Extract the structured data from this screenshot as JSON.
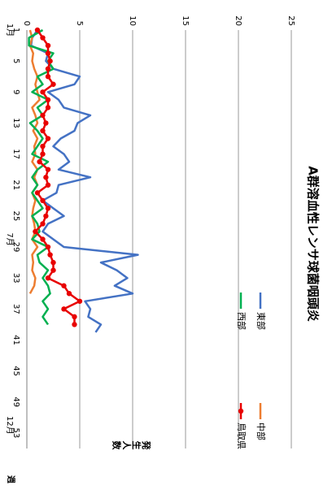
{
  "chart_data": {
    "type": "line",
    "title": "A群溶血性レンサ球菌咽頭炎",
    "ylabel": "発生人数",
    "xlabel": "週",
    "ylim": [
      0,
      25
    ],
    "y_ticks": [
      0,
      5,
      10,
      15,
      20,
      25
    ],
    "x_ticks": [
      1,
      5,
      9,
      13,
      17,
      21,
      25,
      29,
      33,
      37,
      41,
      45,
      49,
      53
    ],
    "month_labels": [
      {
        "week": 1,
        "label": "1月"
      },
      {
        "week": 28,
        "label": "7月"
      },
      {
        "week": 52,
        "label": "12月"
      }
    ],
    "grid": true,
    "legend_position": "top-right",
    "series": [
      {
        "name": "東部",
        "color": "#4472C4",
        "marker": false,
        "values": [
          1.0,
          0.5,
          0.4,
          2.0,
          1.8,
          2.5,
          5.0,
          4.5,
          2.0,
          3.0,
          3.5,
          6.0,
          4.8,
          4.5,
          3.2,
          2.5,
          3.5,
          4.0,
          3.0,
          6.0,
          3.0,
          2.8,
          1.5,
          2.5,
          3.5,
          2.0,
          1.5,
          2.5,
          3.5,
          10.5,
          7.0,
          8.5,
          9.5,
          8.3,
          10.0,
          5.5,
          6.0,
          5.8,
          7.0,
          6.5
        ]
      },
      {
        "name": "中部",
        "color": "#ED7D31",
        "marker": false,
        "values": [
          0.3,
          0.5,
          0.3,
          0.6,
          0.5,
          0.7,
          1.0,
          0.8,
          1.0,
          1.2,
          0.5,
          0.8,
          1.0,
          0.6,
          1.0,
          0.7,
          0.8,
          0.5,
          1.0,
          0.7,
          1.0,
          0.5,
          0.8,
          0.6,
          0.5,
          0.7,
          0.8,
          0.5,
          1.0,
          0.5,
          0.6,
          0.5,
          0.8,
          0.7,
          0.3
        ]
      },
      {
        "name": "西部",
        "color": "#00B050",
        "marker": false,
        "values": [
          1.5,
          0.2,
          0.2,
          2.5,
          2.0,
          2.5,
          1.0,
          1.5,
          0.5,
          2.0,
          1.0,
          1.5,
          0.3,
          1.0,
          1.5,
          1.0,
          0.5,
          2.0,
          1.0,
          0.5,
          1.0,
          0.5,
          1.0,
          1.5,
          0.5,
          1.0,
          1.2,
          0.5,
          2.0,
          1.0,
          1.2,
          2.0,
          1.5,
          2.0,
          2.2,
          1.5,
          2.0,
          1.5,
          2.0
        ]
      },
      {
        "name": "鳥取県",
        "color": "#E80000",
        "marker": true,
        "values": [
          1.0,
          1.5,
          2.0,
          2.0,
          2.2,
          2.0,
          2.0,
          2.5,
          1.5,
          2.0,
          2.0,
          1.5,
          1.8,
          1.5,
          2.0,
          1.5,
          1.5,
          1.2,
          2.0,
          1.8,
          2.0,
          1.0,
          1.5,
          2.0,
          1.8,
          1.5,
          0.8,
          1.5,
          2.0,
          2.2,
          2.5,
          2.5,
          2.0,
          3.5,
          4.0,
          5.0,
          3.5,
          4.5,
          4.5
        ]
      }
    ]
  }
}
